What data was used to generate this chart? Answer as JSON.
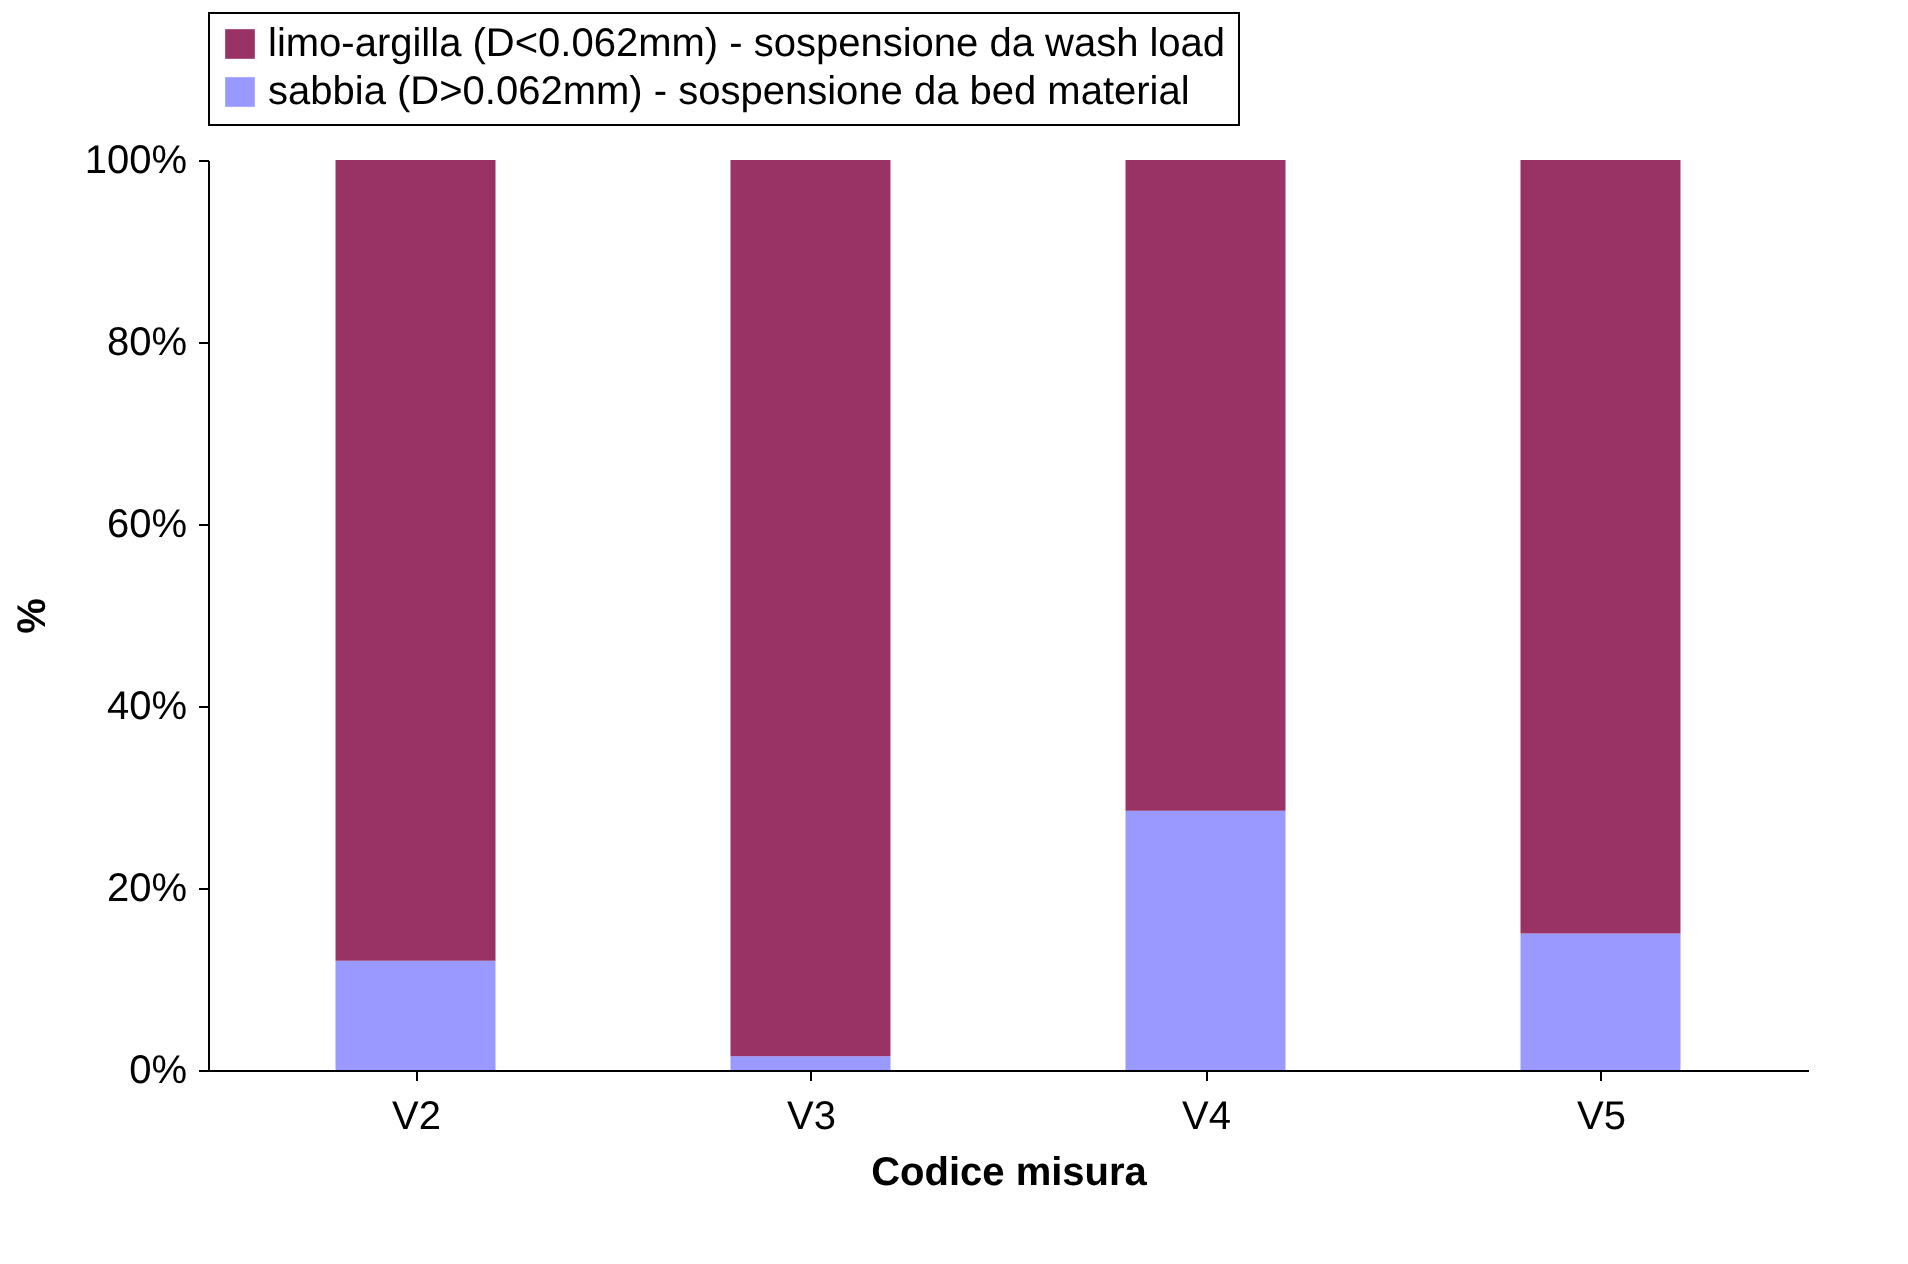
{
  "chart_data": {
    "type": "bar",
    "stacked": true,
    "xlabel": "Codice misura",
    "ylabel": "%",
    "categories": [
      "V2",
      "V3",
      "V4",
      "V5"
    ],
    "series": [
      {
        "name": "sabbia (D>0.062mm) - sospensione da bed material",
        "color": "#9999ff",
        "values": [
          12,
          1.5,
          28.5,
          15
        ]
      },
      {
        "name": "limo-argilla (D<0.062mm) - sospensione da wash load",
        "color": "#993366",
        "values": [
          88,
          98.5,
          71.5,
          85
        ]
      }
    ],
    "ylim": [
      0,
      100
    ],
    "yticks": [
      {
        "value": 0,
        "label": "0%"
      },
      {
        "value": 20,
        "label": "20%"
      },
      {
        "value": 40,
        "label": "40%"
      },
      {
        "value": 60,
        "label": "60%"
      },
      {
        "value": 80,
        "label": "80%"
      },
      {
        "value": 100,
        "label": "100%"
      }
    ],
    "grid": false,
    "legend": "top"
  }
}
